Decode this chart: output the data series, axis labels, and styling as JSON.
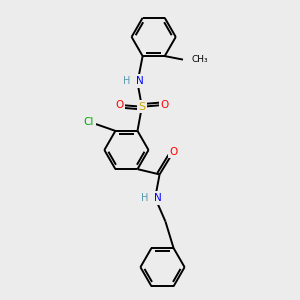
{
  "background_color": "#ececec",
  "bond_color": "#000000",
  "atom_colors": {
    "N": "#0000ff",
    "O": "#ff0000",
    "S": "#ccaa00",
    "Cl": "#00aa00",
    "C": "#000000",
    "H": "#5599aa"
  },
  "lw": 1.4,
  "ring_r": 0.75,
  "figsize": [
    3.0,
    3.0
  ],
  "dpi": 100
}
